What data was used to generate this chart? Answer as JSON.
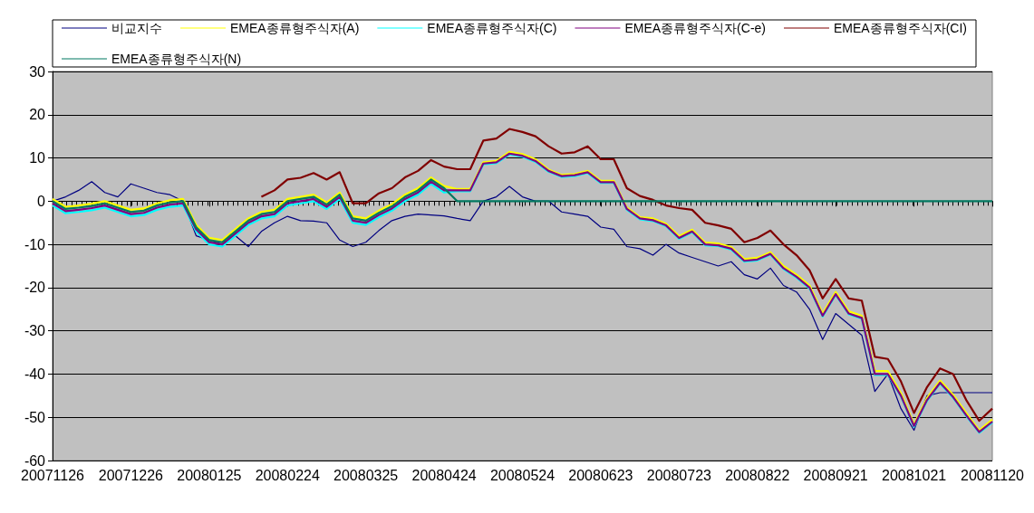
{
  "chart_data": {
    "type": "line",
    "marker": "none",
    "grid": "y",
    "legend": "top",
    "x": [
      "2007-11-26",
      "2007-12-01",
      "2007-12-06",
      "2007-12-11",
      "2007-12-16",
      "2007-12-21",
      "2007-12-26",
      "2007-12-31",
      "2008-01-05",
      "2008-01-10",
      "2008-01-15",
      "2008-01-20",
      "2008-01-25",
      "2008-01-30",
      "2008-02-04",
      "2008-02-09",
      "2008-02-14",
      "2008-02-19",
      "2008-02-24",
      "2008-02-29",
      "2008-03-05",
      "2008-03-10",
      "2008-03-15",
      "2008-03-20",
      "2008-03-25",
      "2008-03-30",
      "2008-04-04",
      "2008-04-09",
      "2008-04-14",
      "2008-04-19",
      "2008-04-24",
      "2008-04-29",
      "2008-05-04",
      "2008-05-09",
      "2008-05-14",
      "2008-05-19",
      "2008-05-24",
      "2008-05-29",
      "2008-06-03",
      "2008-06-08",
      "2008-06-13",
      "2008-06-18",
      "2008-06-23",
      "2008-06-28",
      "2008-07-03",
      "2008-07-08",
      "2008-07-13",
      "2008-07-18",
      "2008-07-23",
      "2008-07-28",
      "2008-08-02",
      "2008-08-07",
      "2008-08-12",
      "2008-08-17",
      "2008-08-22",
      "2008-08-27",
      "2008-09-01",
      "2008-09-06",
      "2008-09-11",
      "2008-09-16",
      "2008-09-21",
      "2008-09-26",
      "2008-10-01",
      "2008-10-06",
      "2008-10-11",
      "2008-10-16",
      "2008-10-21",
      "2008-10-26",
      "2008-10-31",
      "2008-11-05",
      "2008-11-10",
      "2008-11-15",
      "2008-11-20"
    ],
    "xlim": [
      "2007-11-26",
      "2008-11-20"
    ],
    "xticks": [
      {
        "value": "2007-11-26",
        "label": "20071126"
      },
      {
        "value": "2007-12-26",
        "label": "20071226"
      },
      {
        "value": "2008-01-25",
        "label": "20080125"
      },
      {
        "value": "2008-02-24",
        "label": "20080224"
      },
      {
        "value": "2008-03-25",
        "label": "20080325"
      },
      {
        "value": "2008-04-24",
        "label": "20080424"
      },
      {
        "value": "2008-05-24",
        "label": "20080524"
      },
      {
        "value": "2008-06-23",
        "label": "20080623"
      },
      {
        "value": "2008-07-23",
        "label": "20080723"
      },
      {
        "value": "2008-08-22",
        "label": "20080822"
      },
      {
        "value": "2008-09-21",
        "label": "20080921"
      },
      {
        "value": "2008-10-21",
        "label": "20081021"
      },
      {
        "value": "2008-11-20",
        "label": "20081120"
      }
    ],
    "ylim": [
      -60,
      30
    ],
    "yticks": [
      -60,
      -50,
      -40,
      -30,
      -20,
      -10,
      0,
      10,
      20,
      30
    ],
    "series": [
      {
        "name": "비교지수",
        "color": "#000080",
        "values": [
          0,
          1,
          2.5,
          4.5,
          2,
          1,
          4,
          3,
          2,
          1.5,
          0,
          -8,
          -9,
          -10,
          -8,
          -10.5,
          -7,
          -5,
          -3.5,
          -4.5,
          -4.6,
          -5,
          -9,
          -10.5,
          -9.5,
          -6.8,
          -4.5,
          -3.5,
          -3,
          -3.2,
          -3.4,
          -4,
          -4.5,
          0,
          1,
          3.4,
          1,
          0,
          0,
          -2.5,
          -3,
          -3.5,
          -6,
          -6.5,
          -10.5,
          -11,
          -12.5,
          -10,
          -12,
          -13,
          -14,
          -15,
          -14,
          -17,
          -18,
          -15.5,
          -19.5,
          -21,
          -25,
          -32,
          -26,
          -28.5,
          -31,
          -44,
          -40,
          -48,
          -53,
          -45,
          -44.3,
          -44.3,
          -44.3,
          -44.3,
          -44.3
        ]
      },
      {
        "name": "EMEA종류형주식자(A)",
        "color": "#ffff00",
        "values": [
          0.5,
          -1.3,
          -1,
          -0.6,
          0,
          -1,
          -2,
          -1.7,
          -0.5,
          0.2,
          0.5,
          -5.5,
          -8.5,
          -9,
          -6.5,
          -4,
          -2.5,
          -2,
          0.5,
          1,
          1.5,
          -0.3,
          2,
          -3.5,
          -4,
          -2.2,
          -0.7,
          1.5,
          3,
          5.5,
          3.5,
          2.8,
          2.8,
          9,
          9.3,
          11.4,
          10.9,
          9.7,
          7.3,
          6.1,
          6.3,
          7,
          4.7,
          4.7,
          -1.5,
          -3.7,
          -4,
          -5.2,
          -8.1,
          -6.6,
          -9.6,
          -9.8,
          -10.6,
          -13.4,
          -13.1,
          -11.8,
          -15,
          -17,
          -19.5,
          -26,
          -21,
          -25.5,
          -26.5,
          -39.3,
          -39.3,
          -44.4,
          -51.6,
          -45.5,
          -41.5,
          -44.8,
          -49,
          -53,
          -50.5
        ]
      },
      {
        "name": "EMEA종류형주식자(C)",
        "color": "#00ffff",
        "values": [
          -1,
          -2.8,
          -2.5,
          -2.1,
          -1.5,
          -2.5,
          -3.5,
          -3.2,
          -2,
          -1.3,
          -1,
          -7,
          -10,
          -10.5,
          -8,
          -5.5,
          -4,
          -3.5,
          -1,
          -0.5,
          0,
          -1.8,
          0.5,
          -5,
          -5.5,
          -3.7,
          -2.2,
          0,
          1.5,
          4,
          2,
          2.3,
          2.3,
          8.5,
          8.8,
          10.8,
          10.3,
          9.1,
          6.8,
          5.6,
          5.8,
          6.5,
          4.2,
          4.2,
          -2,
          -4.2,
          -4.6,
          -5.8,
          -8.7,
          -7.2,
          -10.2,
          -10.4,
          -11.2,
          -14,
          -13.7,
          -12.4,
          -15.7,
          -17.7,
          -20.2,
          -26.7,
          -21.7,
          -26.2,
          -27.2,
          -40.2,
          -40.2,
          -45.2,
          -52.2,
          -46.2,
          -42.2,
          -45.5,
          -49.7,
          -53.6,
          -51.2
        ]
      },
      {
        "name": "EMEA종류형주식자(C-e)",
        "color": "#800080",
        "values": [
          -0.5,
          -2.3,
          -2,
          -1.6,
          -1,
          -2,
          -3,
          -2.7,
          -1.5,
          -0.8,
          -0.5,
          -6.5,
          -9.5,
          -10,
          -7.5,
          -5,
          -3.5,
          -3,
          -0.5,
          0,
          0.5,
          -1.3,
          1,
          -4.5,
          -5,
          -3.2,
          -1.7,
          0.5,
          2,
          4.5,
          2.5,
          2.5,
          2.5,
          8.7,
          9,
          11,
          10.5,
          9.3,
          7,
          5.8,
          6,
          6.7,
          4.4,
          4.4,
          -1.8,
          -4,
          -4.4,
          -5.6,
          -8.5,
          -7,
          -10,
          -10.2,
          -11,
          -13.8,
          -13.5,
          -12.2,
          -15.5,
          -17.5,
          -20,
          -26.5,
          -21.5,
          -26,
          -27,
          -40,
          -40,
          -45,
          -52,
          -46,
          -42,
          -45.3,
          -49.5,
          -53.4,
          -51
        ]
      },
      {
        "name": "EMEA종류형주식자(CI)",
        "color": "#800000",
        "values": [
          null,
          null,
          null,
          null,
          null,
          null,
          null,
          null,
          null,
          null,
          null,
          null,
          null,
          null,
          null,
          null,
          1,
          2.5,
          5,
          5.4,
          6.5,
          5,
          6.7,
          -0.5,
          -0.5,
          1.8,
          3,
          5.5,
          7,
          9.5,
          8,
          7.4,
          7.4,
          14,
          14.5,
          16.7,
          16,
          15,
          12.7,
          11,
          11.3,
          12.7,
          9.7,
          9.7,
          3,
          1.2,
          0.3,
          -1,
          -1.6,
          -2,
          -5,
          -5.6,
          -6.4,
          -9.5,
          -8.5,
          -6.8,
          -10,
          -12.5,
          -16,
          -22.5,
          -18,
          -22.5,
          -23,
          -36,
          -36.5,
          -41.7,
          -49,
          -43,
          -38.7,
          -40,
          -46,
          -50.8,
          -48
        ]
      },
      {
        "name": "EMEA종류형주식자(N)",
        "color": "#007860",
        "values": [
          0,
          -1.8,
          -1.5,
          -1.1,
          -0.5,
          -1.5,
          -2.5,
          -2.2,
          -1,
          -0.3,
          0,
          -6,
          -9,
          -9.5,
          -7,
          -4.5,
          -3,
          -2.5,
          0,
          0.5,
          1,
          -0.8,
          1.5,
          -4,
          -4.5,
          -2.7,
          -1.2,
          1,
          2.5,
          5,
          3,
          0,
          0,
          0,
          0,
          0,
          0,
          0,
          0,
          0,
          0,
          0,
          0,
          0,
          0,
          0,
          0,
          0,
          0,
          0,
          0,
          0,
          0,
          0,
          0,
          0,
          0,
          0,
          0,
          0,
          0,
          0,
          0,
          0,
          0,
          0,
          0,
          0,
          0,
          0,
          0,
          0,
          0
        ]
      }
    ]
  }
}
